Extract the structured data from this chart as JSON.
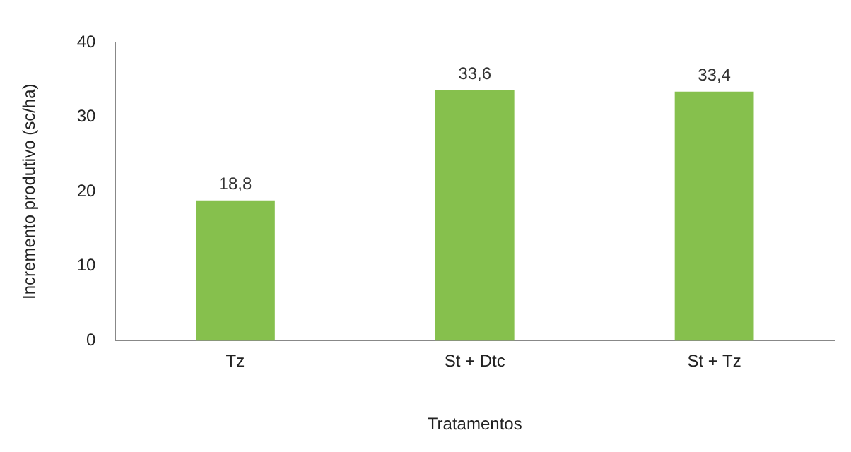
{
  "chart_data": {
    "type": "bar",
    "xlabel": "Tratamentos",
    "ylabel": "Incremento produtivo (sc/ha)",
    "categories": [
      "Tz",
      "St + Dtc",
      "St + Tz"
    ],
    "values": [
      18.8,
      33.6,
      33.4
    ],
    "color": "#86c04d",
    "value_labels": [
      "18,8",
      "33,6",
      "33,4"
    ],
    "ylim": [
      0,
      40
    ],
    "yticks": [
      0,
      10,
      20,
      30,
      40
    ],
    "grid": false,
    "legend": false
  }
}
